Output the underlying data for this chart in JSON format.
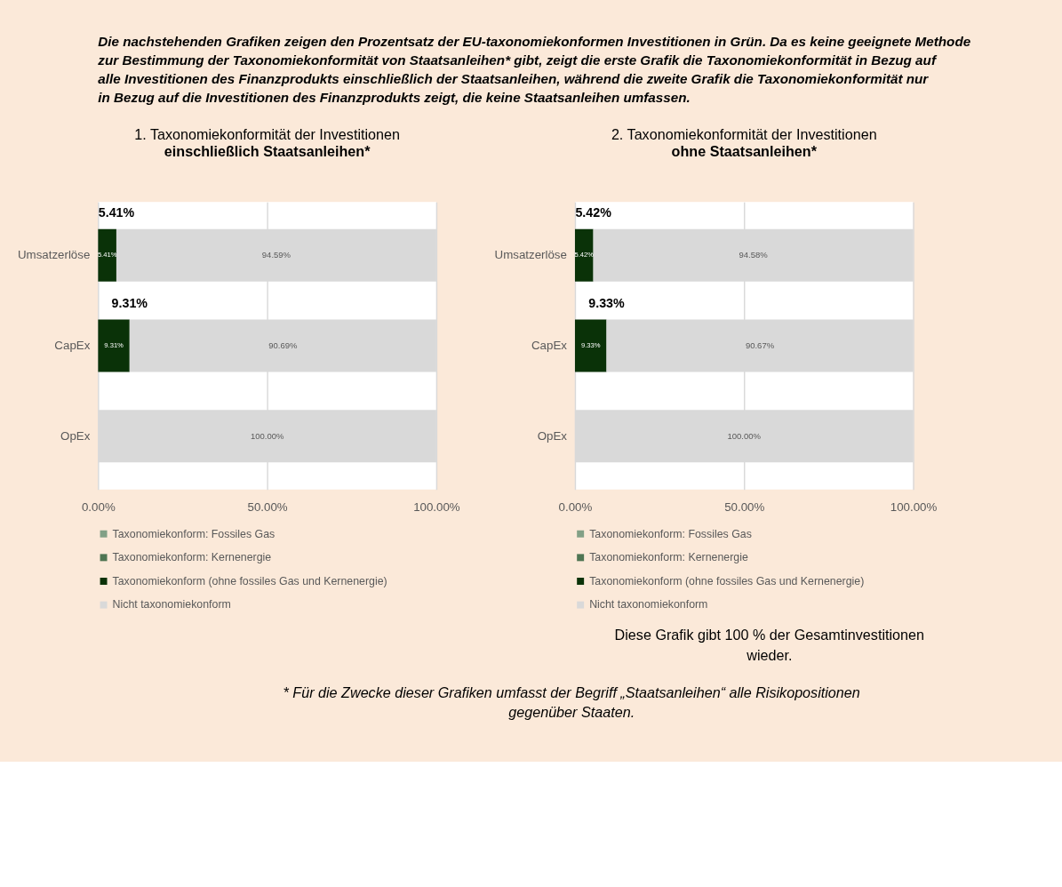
{
  "chart_data": [
    {
      "type": "bar",
      "orientation": "horizontal",
      "stacked": true,
      "title": "1. Taxonomiekonformität der Investitionen",
      "subtitle": "einschließlich Staatsanleihen*",
      "categories": [
        "Umsatzerlöse",
        "CapEx",
        "OpEx"
      ],
      "series": [
        {
          "name": "Taxonomiekonform: Fossiles Gas",
          "color": "#82a086",
          "values": [
            0,
            0,
            0
          ]
        },
        {
          "name": "Taxonomiekonform: Kernenergie",
          "color": "#4f7553",
          "values": [
            0,
            0,
            0
          ]
        },
        {
          "name": "Taxonomiekonform (ohne fossiles Gas und Kernenergie)",
          "color": "#0a3208",
          "values": [
            5.41,
            9.31,
            0
          ],
          "value_labels": [
            "5.41%",
            "9.31%",
            null
          ]
        },
        {
          "name": "Nicht taxonomiekonform",
          "color": "#d9d9d9",
          "values": [
            94.59,
            90.69,
            100
          ],
          "value_labels": [
            "94.59%",
            "90.69%",
            "100.00%"
          ]
        }
      ],
      "xlim": [
        0,
        100
      ],
      "xticks": [
        {
          "value": 0,
          "label": "0.00%"
        },
        {
          "value": 50,
          "label": "50.00%"
        },
        {
          "value": 100,
          "label": "100.00%"
        }
      ],
      "grid": "x",
      "legend": "bottom",
      "annotations": [
        "Die nachstehenden Grafiken zeigen den Prozentsatz der EU-taxonomiekonformen Investitionen in Grün. Da es keine geeignete Methode zur Bestimmung der Taxonomiekonformität von Staatsanleihen* gibt, zeigt die erste Grafik die Taxonomiekonformität in Bezug auf alle Investitionen des Finanzprodukts einschließlich der Staatsanleihen, während die zweite Grafik die Taxonomiekonformität nur in Bezug auf die Investitionen des Finanzprodukts zeigt, die keine Staatsanleihen umfassen.",
        {
          "text": "5.41%",
          "x": 5.41,
          "y": "Umsatzerlöse"
        },
        {
          "text": "9.31%",
          "x": 9.31,
          "y": "CapEx"
        }
      ]
    },
    {
      "type": "bar",
      "orientation": "horizontal",
      "stacked": true,
      "title": "2. Taxonomiekonformität der Investitionen",
      "subtitle": "ohne Staatsanleihen*",
      "categories": [
        "Umsatzerlöse",
        "CapEx",
        "OpEx"
      ],
      "series": [
        {
          "name": "Taxonomiekonform: Fossiles Gas",
          "color": "#82a086",
          "values": [
            0,
            0,
            0
          ]
        },
        {
          "name": "Taxonomiekonform: Kernenergie",
          "color": "#4f7553",
          "values": [
            0,
            0,
            0
          ]
        },
        {
          "name": "Taxonomiekonform (ohne fossiles Gas und Kernenergie)",
          "color": "#0a3208",
          "values": [
            5.42,
            9.33,
            0
          ],
          "value_labels": [
            "5.42%",
            "9.33%",
            null
          ]
        },
        {
          "name": "Nicht taxonomiekonform",
          "color": "#d9d9d9",
          "values": [
            94.58,
            90.67,
            100
          ],
          "value_labels": [
            "94.58%",
            "90.67%",
            "100.00%"
          ]
        }
      ],
      "xlim": [
        0,
        100
      ],
      "xticks": [
        {
          "value": 0,
          "label": "0.00%"
        },
        {
          "value": 50,
          "label": "50.00%"
        },
        {
          "value": 100,
          "label": "100.00%"
        }
      ],
      "grid": "x",
      "legend": "bottom",
      "annotations": [
        {
          "text": "5.42%",
          "x": 5.42,
          "y": "Umsatzerlöse"
        },
        {
          "text": "9.33%",
          "x": 9.33,
          "y": "CapEx"
        },
        "Diese Grafik gibt 100 % der Gesamtinvestitionen wieder.",
        "* Für die Zwecke dieser Grafiken umfasst der Begriff „Staatsanleihen“ alle Risikopositionen gegenüber Staaten."
      ]
    }
  ]
}
